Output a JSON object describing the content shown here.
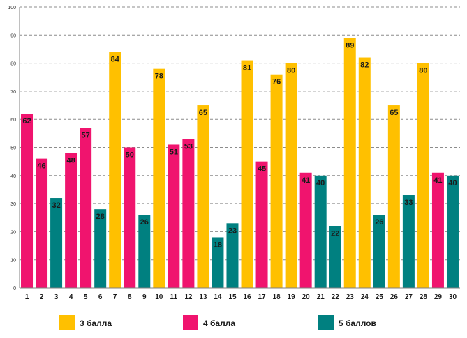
{
  "chart_data": {
    "type": "bar",
    "title": "",
    "xlabel": "",
    "ylabel": "",
    "ylim": [
      0,
      100
    ],
    "yticks": [
      "0",
      "10",
      "20",
      "30",
      "40",
      "50",
      "60",
      "70",
      "80",
      "90",
      "100"
    ],
    "grid": true,
    "categories": [
      "1",
      "2",
      "3",
      "4",
      "5",
      "6",
      "7",
      "8",
      "9",
      "10",
      "11",
      "12",
      "13",
      "14",
      "15",
      "16",
      "17",
      "18",
      "19",
      "20",
      "21",
      "22",
      "23",
      "24",
      "25",
      "26",
      "27",
      "28",
      "29",
      "30"
    ],
    "values": [
      62,
      46,
      32,
      48,
      57,
      28,
      84,
      50,
      26,
      78,
      51,
      53,
      65,
      18,
      23,
      81,
      45,
      76,
      80,
      41,
      40,
      22,
      89,
      82,
      26,
      65,
      33,
      80,
      41,
      40
    ],
    "groups": [
      "4 балла",
      "4 балла",
      "5 баллов",
      "4 балла",
      "4 балла",
      "5 баллов",
      "3 балла",
      "4 балла",
      "5 баллов",
      "3 балла",
      "4 балла",
      "4 балла",
      "3 балла",
      "5 баллов",
      "5 баллов",
      "3 балла",
      "4 балла",
      "3 балла",
      "3 балла",
      "4 балла",
      "5 баллов",
      "5 баллов",
      "3 балла",
      "3 балла",
      "5 баллов",
      "3 балла",
      "5 баллов",
      "3 балла",
      "4 балла",
      "5 баллов"
    ],
    "legend": [
      {
        "name": "3 балла",
        "color": "#FFC000"
      },
      {
        "name": "4 балла",
        "color": "#F0146E"
      },
      {
        "name": "5 баллов",
        "color": "#008080"
      }
    ],
    "legend_position": "bottom"
  }
}
